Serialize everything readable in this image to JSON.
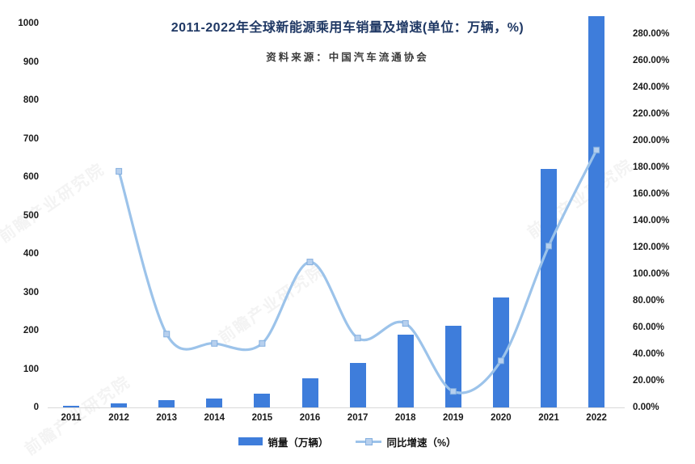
{
  "page": {
    "background": "#ffffff"
  },
  "chart_data": {
    "type": "combo-bar-line",
    "title": "2011-2022年全球新能源乘用车销量及增速(单位：万辆，%)",
    "subtitle": "资料来源：中国汽车流通协会",
    "categories": [
      "2011",
      "2012",
      "2013",
      "2014",
      "2015",
      "2016",
      "2017",
      "2018",
      "2019",
      "2020",
      "2021",
      "2022"
    ],
    "series": [
      {
        "name": "销量（万辆）",
        "type": "bar",
        "axis": "left",
        "color": "#3e7ddb",
        "values": [
          4,
          11,
          19,
          24,
          36,
          75,
          116,
          189,
          212,
          286,
          622,
          1020
        ]
      },
      {
        "name": "同比增速（%）",
        "type": "line",
        "axis": "right",
        "color": "#9cc3ea",
        "marker": "square",
        "marker_fill": "#b7d0ee",
        "marker_stroke": "#84afdf",
        "values": [
          null,
          177,
          55,
          48,
          48,
          109,
          52,
          63,
          12,
          35,
          121,
          193
        ]
      }
    ],
    "left_axis": {
      "min": 0,
      "max": 1000,
      "step": 100,
      "ticks": [
        "0",
        "100",
        "200",
        "300",
        "400",
        "500",
        "600",
        "700",
        "800",
        "900",
        "1000"
      ]
    },
    "right_axis": {
      "min": 0,
      "max": 280,
      "step": 20,
      "ticks": [
        "0.00%",
        "20.00%",
        "40.00%",
        "60.00%",
        "80.00%",
        "100.00%",
        "120.00%",
        "140.00%",
        "160.00%",
        "180.00%",
        "200.00%",
        "220.00%",
        "240.00%",
        "260.00%",
        "280.00%"
      ]
    },
    "grid": false,
    "legend_position": "bottom",
    "axis_line_color": "#d9d9d9",
    "title_color": "#1f3864",
    "text_color": "#1a1a1a"
  },
  "watermark": {
    "text": "前瞻产业研究院"
  }
}
